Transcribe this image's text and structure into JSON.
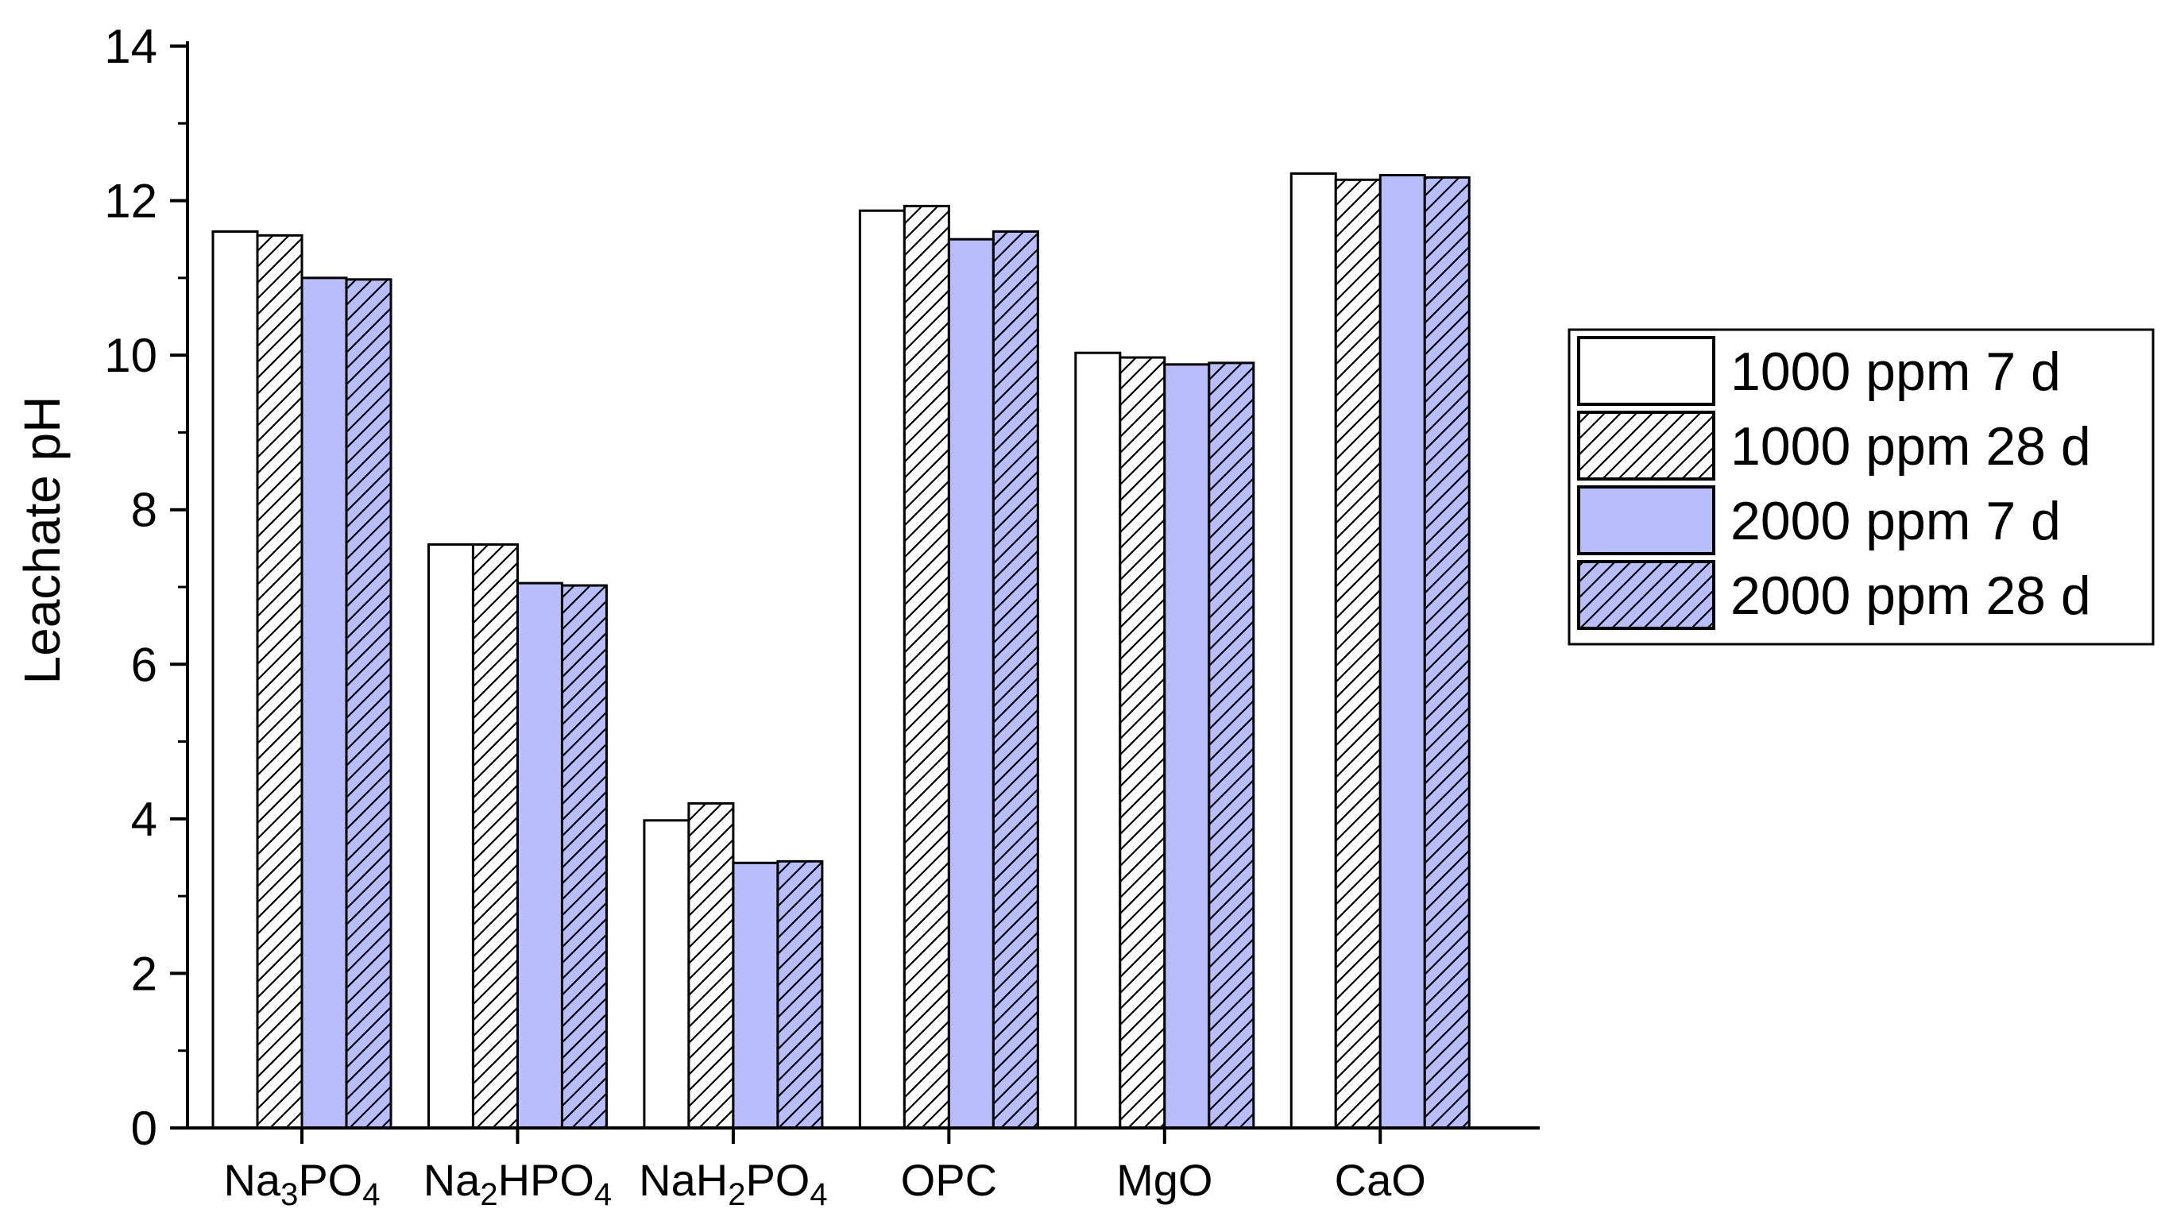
{
  "chart_data": {
    "type": "bar",
    "ylabel": "Leachate pH",
    "xlabel": "",
    "ylim": [
      0,
      14
    ],
    "yticks": [
      0,
      2,
      4,
      6,
      8,
      10,
      12,
      14
    ],
    "categories": [
      {
        "label": "Na3PO4",
        "parts": [
          {
            "t": "Na"
          },
          {
            "t": "3",
            "sub": true
          },
          {
            "t": "PO"
          },
          {
            "t": "4",
            "sub": true
          }
        ]
      },
      {
        "label": "Na2HPO4",
        "parts": [
          {
            "t": "Na"
          },
          {
            "t": "2",
            "sub": true
          },
          {
            "t": "HPO"
          },
          {
            "t": "4",
            "sub": true
          }
        ]
      },
      {
        "label": "NaH2PO4",
        "parts": [
          {
            "t": "NaH"
          },
          {
            "t": "2",
            "sub": true
          },
          {
            "t": "PO"
          },
          {
            "t": "4",
            "sub": true
          }
        ]
      },
      {
        "label": "OPC",
        "parts": [
          {
            "t": "OPC"
          }
        ]
      },
      {
        "label": "MgO",
        "parts": [
          {
            "t": "MgO"
          }
        ]
      },
      {
        "label": "CaO",
        "parts": [
          {
            "t": "CaO"
          }
        ]
      }
    ],
    "series": [
      {
        "name": "1000 ppm 7 d",
        "fill": "#ffffff",
        "hatch": false,
        "values": [
          11.6,
          7.55,
          3.98,
          11.87,
          10.03,
          12.35
        ]
      },
      {
        "name": "1000 ppm 28 d",
        "fill": "#ffffff",
        "hatch": true,
        "values": [
          11.55,
          7.55,
          4.2,
          11.93,
          9.97,
          12.27
        ]
      },
      {
        "name": "2000 ppm 7 d",
        "fill": "#b8bdfb",
        "hatch": false,
        "values": [
          11.0,
          7.05,
          3.43,
          11.5,
          9.88,
          12.33
        ]
      },
      {
        "name": "2000 ppm 28 d",
        "fill": "#b8bdfb",
        "hatch": true,
        "values": [
          10.98,
          7.02,
          3.45,
          11.6,
          9.9,
          12.3
        ]
      }
    ],
    "grid": false,
    "legend_position": "right"
  }
}
